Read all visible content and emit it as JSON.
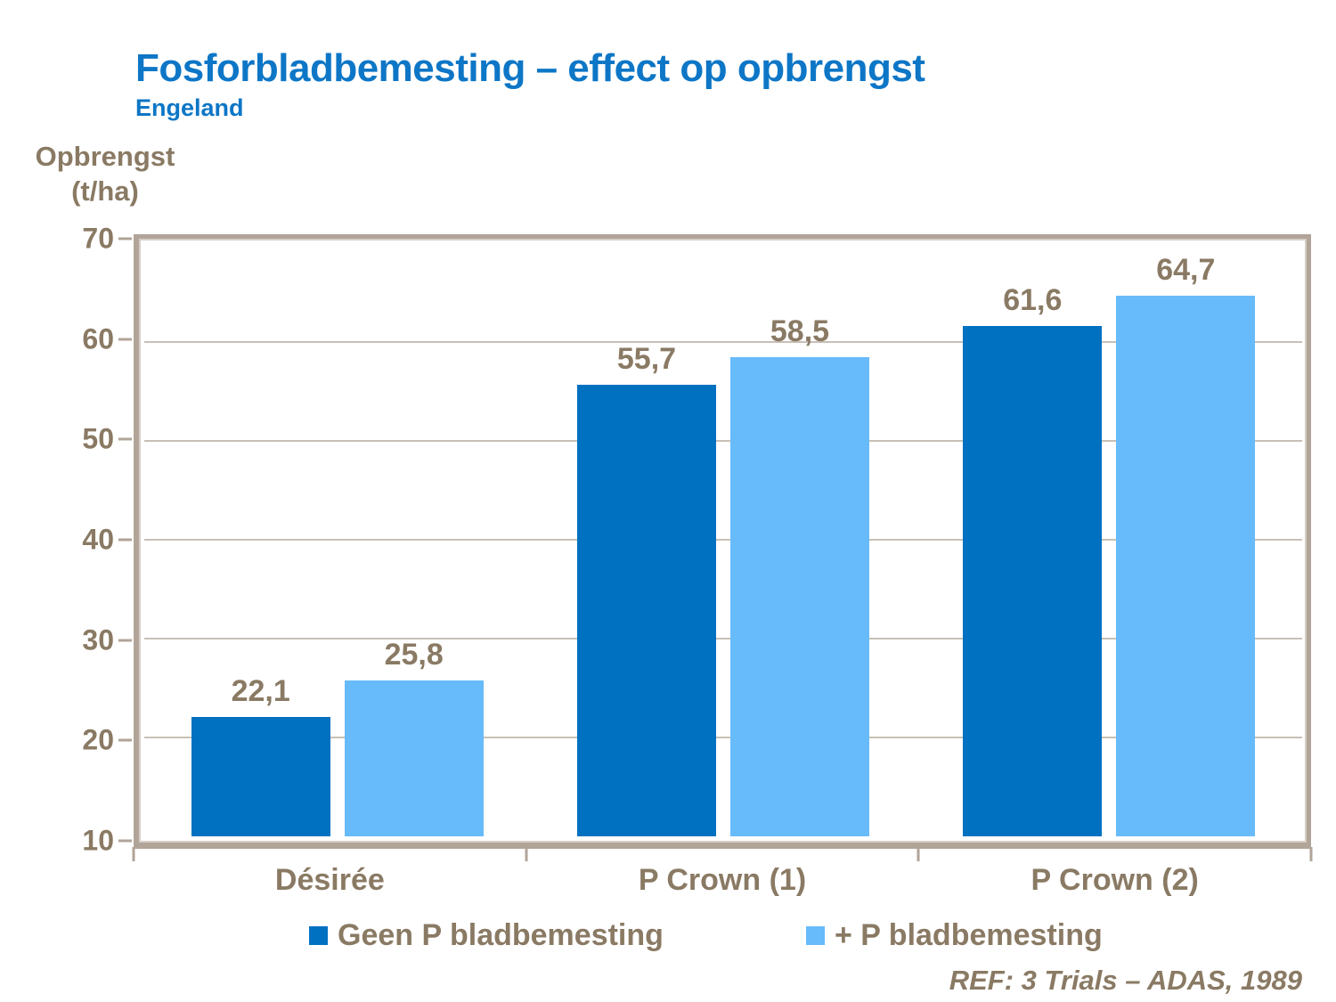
{
  "slide": {
    "title": "Fosforbladbemesting – effect op opbrengst",
    "subtitle": "Engeland",
    "reference": "REF: 3 Trials – ADAS, 1989"
  },
  "y_axis": {
    "title_line1": "Opbrengst",
    "title_line2": "(t/ha)"
  },
  "colors": {
    "title_blue": "#0d76c6",
    "text_brown": "#8a7a64",
    "axis_taupe": "#b1a498",
    "gridline_gray": "#c8c0b7",
    "series1_dark_blue": "#0071c0",
    "series2_light_blue": "#67bbfa"
  },
  "chart_data": {
    "type": "bar",
    "title": "Fosforbladbemesting – effect op opbrengst",
    "subtitle": "Engeland",
    "ylabel": "Opbrengst (t/ha)",
    "xlabel": "",
    "categories": [
      "Désirée",
      "P Crown (1)",
      "P Crown (2)"
    ],
    "series": [
      {
        "name": "Geen P bladbemesting",
        "color": "#0071c0",
        "values": [
          22.1,
          55.7,
          61.6
        ],
        "value_labels": [
          "22,1",
          "55,7",
          "61,6"
        ]
      },
      {
        "name": "+ P bladbemesting",
        "color": "#67bbfa",
        "values": [
          25.8,
          58.5,
          64.7
        ],
        "value_labels": [
          "25,8",
          "58,5",
          "64,7"
        ]
      }
    ],
    "ylim": [
      10,
      70
    ],
    "yticks": [
      10,
      20,
      30,
      40,
      50,
      60,
      70
    ],
    "grid": true,
    "legend_position": "bottom",
    "annotation": "REF: 3 Trials – ADAS, 1989"
  }
}
